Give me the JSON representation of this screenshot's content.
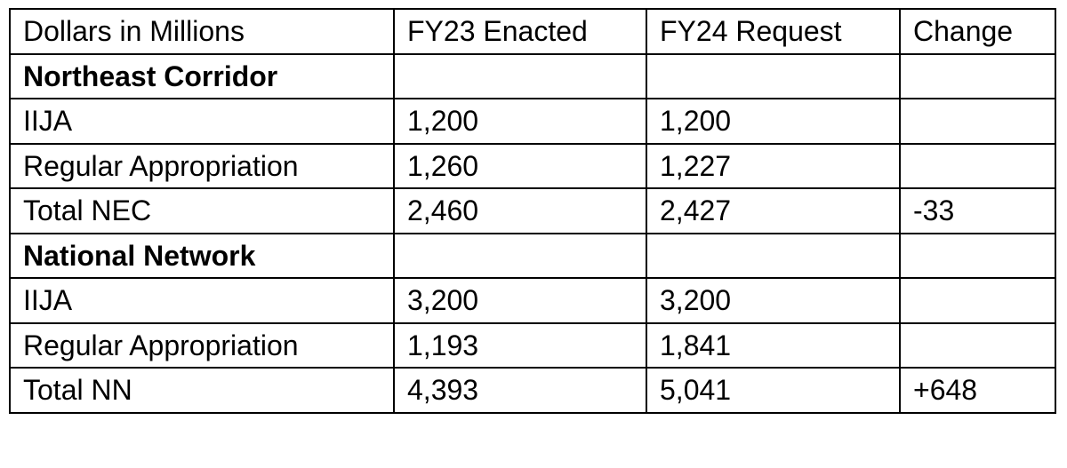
{
  "table": {
    "header": [
      "Dollars in Millions",
      "FY23 Enacted",
      "FY24 Request",
      "Change"
    ],
    "sections": [
      {
        "title": "Northeast Corridor",
        "rows": [
          [
            "IIJA",
            "1,200",
            "1,200"
          ],
          [
            "Regular Appropriation",
            "1,260",
            "1,227"
          ],
          [
            "Total NEC",
            "2,460",
            "2,427",
            "-33"
          ]
        ]
      },
      {
        "title": "National Network",
        "rows": [
          [
            "IIJA",
            "3,200",
            "3,200"
          ],
          [
            "Regular Appropriation",
            "1,193",
            "1,841"
          ],
          [
            "Total NN",
            "4,393",
            "5,041",
            "+648"
          ]
        ]
      }
    ]
  }
}
